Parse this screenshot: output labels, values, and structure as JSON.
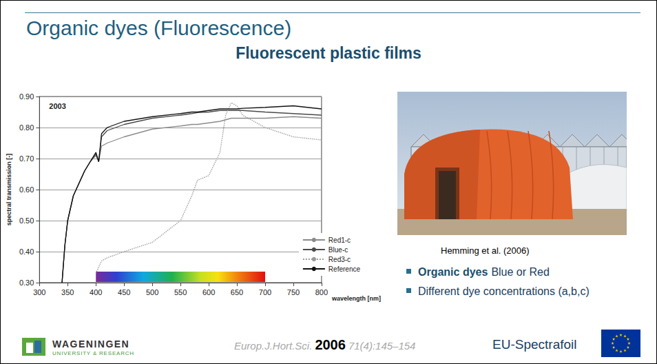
{
  "slide": {
    "title": "Organic dyes (Fluorescence)",
    "subtitle": "Fluorescent plastic films",
    "photo_caption": "Hemming et al. (2006)",
    "bullets": [
      {
        "bold": "Organic dyes",
        "text": "Blue or Red"
      },
      {
        "text": "Different dye concentrations (a,b,c)"
      }
    ],
    "logo": {
      "name": "WAGENINGEN",
      "subname": "UNIVERSITY & RESEARCH"
    },
    "citation": {
      "journal": "Europ.J.Hort.Sci.",
      "year": "2006",
      "issue": "71(4):145–154"
    },
    "project": "EU-Spectrafoil"
  },
  "chart_data": {
    "type": "line",
    "annotation": "2003",
    "xlabel": "wavelength [nm]",
    "ylabel": "spectral transmission [-]",
    "x": [
      340,
      345,
      350,
      360,
      370,
      380,
      390,
      400,
      405,
      410,
      420,
      450,
      500,
      550,
      570,
      580,
      600,
      620,
      630,
      640,
      650,
      660,
      700,
      750,
      800
    ],
    "series": [
      {
        "name": "Red1-c",
        "color": "#8a8a8a",
        "line_style": "solid",
        "values": [
          0.3,
          0.42,
          0.5,
          0.58,
          0.62,
          0.66,
          0.69,
          0.71,
          0.69,
          0.74,
          0.75,
          0.77,
          0.795,
          0.805,
          0.81,
          0.81,
          0.815,
          0.82,
          0.825,
          0.83,
          0.83,
          0.83,
          0.83,
          0.835,
          0.83
        ]
      },
      {
        "name": "Blue-c",
        "color": "#4a4a4a",
        "line_style": "solid",
        "values": [
          0.3,
          0.42,
          0.5,
          0.58,
          0.62,
          0.66,
          0.69,
          0.715,
          0.69,
          0.77,
          0.79,
          0.81,
          0.83,
          0.84,
          0.845,
          0.848,
          0.85,
          0.855,
          0.855,
          0.855,
          0.855,
          0.855,
          0.85,
          0.845,
          0.84
        ]
      },
      {
        "name": "Red3-c",
        "color": "#9a9a9a",
        "line_style": "dotted",
        "values": [
          null,
          null,
          null,
          null,
          null,
          null,
          null,
          0.33,
          0.35,
          0.37,
          0.38,
          0.4,
          0.43,
          0.5,
          0.58,
          0.63,
          0.645,
          0.72,
          0.84,
          0.88,
          0.87,
          0.84,
          0.8,
          0.77,
          0.76
        ]
      },
      {
        "name": "Reference",
        "color": "#111111",
        "line_style": "solid",
        "values": [
          0.3,
          0.42,
          0.5,
          0.58,
          0.62,
          0.66,
          0.69,
          0.72,
          0.69,
          0.78,
          0.8,
          0.82,
          0.835,
          0.845,
          0.85,
          0.85,
          0.855,
          0.86,
          0.86,
          0.86,
          0.86,
          0.862,
          0.865,
          0.87,
          0.86
        ]
      }
    ],
    "xlim": [
      300,
      800
    ],
    "xticks": [
      300,
      350,
      400,
      450,
      500,
      550,
      600,
      650,
      700,
      750,
      800
    ],
    "ylim": [
      0.3,
      0.9
    ],
    "yticks": [
      {
        "value": 0.3,
        "label": "0.30"
      },
      {
        "value": 0.4,
        "label": "0.40"
      },
      {
        "value": 0.5,
        "label": "0.50"
      },
      {
        "value": 0.6,
        "label": "0.60"
      },
      {
        "value": 0.7,
        "label": "0.70"
      },
      {
        "value": 0.8,
        "label": "0.80"
      },
      {
        "value": 0.9,
        "label": "0.90"
      }
    ],
    "spectrum": [
      400,
      700
    ],
    "grid": true,
    "legend": "lower right"
  }
}
